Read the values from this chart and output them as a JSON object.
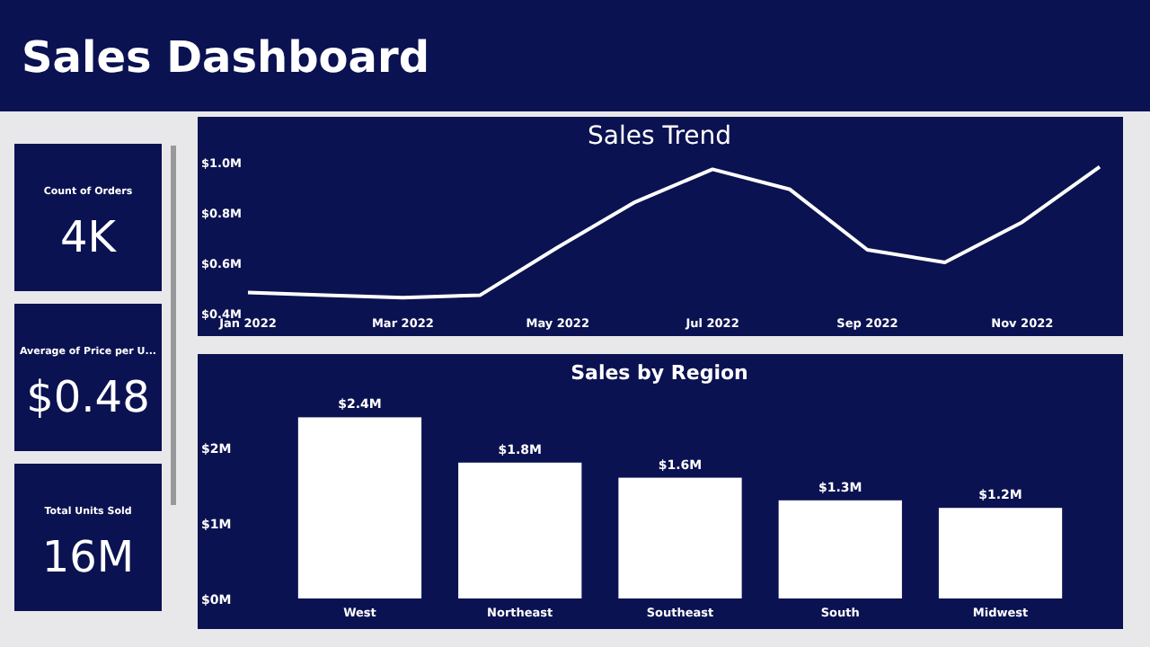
{
  "chart_data": [
    {
      "type": "other",
      "title": "Sales Dashboard",
      "annotations": [
        "Count of Orders",
        "4K",
        "Average of Price per U...",
        "$0.48",
        "Total Units Sold",
        "16M"
      ]
    },
    {
      "type": "line",
      "title": "Sales Trend",
      "categories": [
        "Jan 2022",
        null,
        "Mar 2022",
        null,
        "May 2022",
        null,
        "Jul 2022",
        null,
        "Sep 2022",
        null,
        "Nov 2022",
        null
      ],
      "series": [
        {
          "color": "#ffffff",
          "values": [
            0.48,
            0.47,
            0.46,
            0.47,
            0.66,
            0.84,
            0.97,
            0.89,
            0.65,
            0.6,
            0.76,
            0.98
          ]
        }
      ],
      "ylim": [
        0.4,
        1.0
      ],
      "yticks": [
        {
          "value": 0.4,
          "label": "$0.4M"
        },
        {
          "value": 0.6,
          "label": "$0.6M"
        },
        {
          "value": 0.8,
          "label": "$0.8M"
        },
        {
          "value": 1.0,
          "label": "$1.0M"
        }
      ],
      "marker": "none",
      "line_style": "solid"
    },
    {
      "type": "bar",
      "title": "Sales by Region",
      "categories": [
        "West",
        "Northeast",
        "Southeast",
        "South",
        "Midwest"
      ],
      "values": [
        2.4,
        1.8,
        1.6,
        1.3,
        1.2
      ],
      "color": "#ffffff",
      "value_labels": [
        "$2.4M",
        "$1.8M",
        "$1.6M",
        "$1.3M",
        "$1.2M"
      ],
      "ylim": [
        0,
        2.5
      ],
      "yticks": [
        {
          "value": 0,
          "label": "$0M"
        },
        {
          "value": 1,
          "label": "$1M"
        },
        {
          "value": 2,
          "label": "$2M"
        }
      ]
    }
  ]
}
